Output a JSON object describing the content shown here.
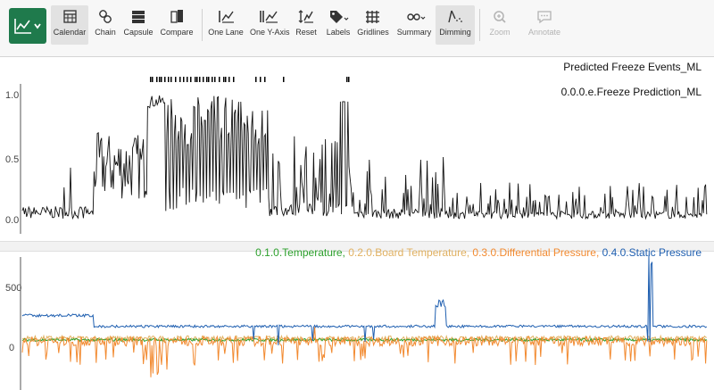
{
  "toolbar": {
    "items": [
      {
        "label": "Calendar",
        "icon": "calendar-icon"
      },
      {
        "label": "Chain",
        "icon": "chain-icon"
      },
      {
        "label": "Capsule",
        "icon": "capsule-icon"
      },
      {
        "label": "Compare",
        "icon": "compare-icon"
      },
      {
        "label": "One Lane",
        "icon": "one-lane-icon"
      },
      {
        "label": "One Y-Axis",
        "icon": "one-y-axis-icon"
      },
      {
        "label": "Reset",
        "icon": "reset-icon"
      },
      {
        "label": "Labels",
        "icon": "labels-icon"
      },
      {
        "label": "Gridlines",
        "icon": "gridlines-icon"
      },
      {
        "label": "Summary",
        "icon": "summary-icon"
      },
      {
        "label": "Dimming",
        "icon": "dimming-icon"
      },
      {
        "label": "Zoom",
        "icon": "zoom-icon"
      },
      {
        "label": "Annotate",
        "icon": "annotate-icon"
      }
    ]
  },
  "lanes": {
    "events": {
      "title": "Predicted Freeze Events_ML"
    },
    "prediction": {
      "title": "0.0.0.e.Freeze Prediction_ML",
      "ticks": [
        "1.0",
        "0.5",
        "0.0"
      ]
    },
    "sensors": {
      "ticks": [
        "500",
        "0"
      ],
      "legend": [
        {
          "label": "0.1.0.Temperature",
          "color": "#2ca02c"
        },
        {
          "label": "0.2.0.Board Temperature",
          "color": "#e0b060"
        },
        {
          "label": "0.3.0.Differential Pressure",
          "color": "#f28a30"
        },
        {
          "label": "0.4.0.Static Pressure",
          "color": "#1f5fb0"
        }
      ]
    }
  },
  "colors": {
    "accent": "#1f7a4c",
    "prediction_line": "#111111"
  },
  "chart_data": [
    {
      "type": "line",
      "title": "0.0.0.e.Freeze Prediction_ML",
      "ylim": [
        0,
        1.0
      ],
      "series": [
        {
          "name": "0.0.0.e.Freeze Prediction_ML"
        }
      ]
    },
    {
      "type": "line",
      "ylim": [
        0,
        700
      ],
      "series": [
        {
          "name": "0.1.0.Temperature"
        },
        {
          "name": "0.2.0.Board Temperature"
        },
        {
          "name": "0.3.0.Differential Pressure"
        },
        {
          "name": "0.4.0.Static Pressure"
        }
      ]
    }
  ]
}
